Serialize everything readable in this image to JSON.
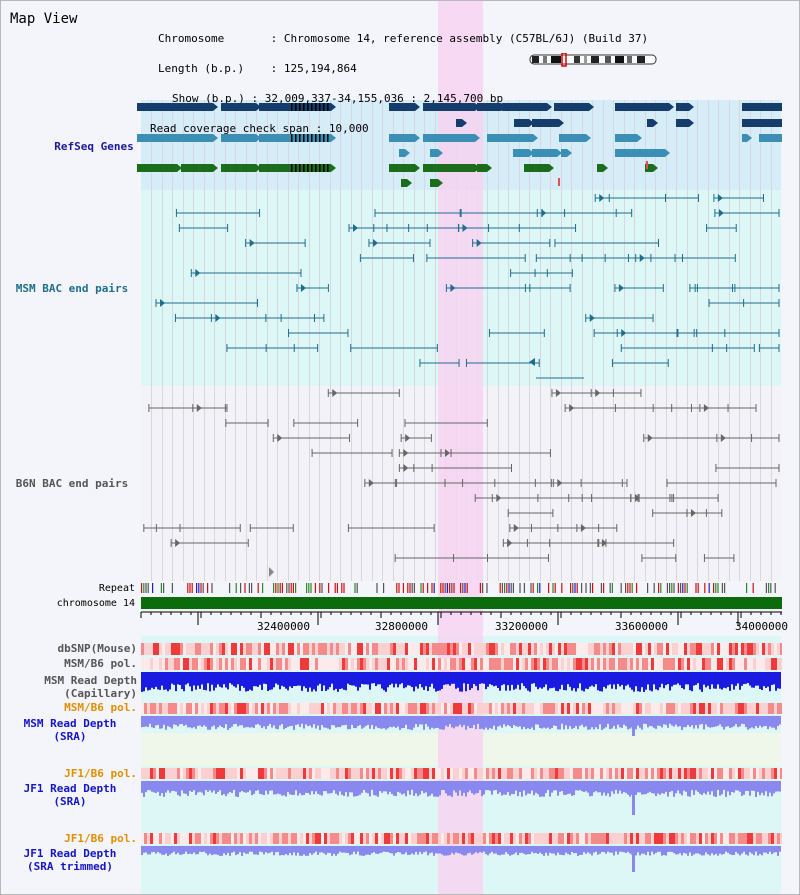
{
  "app": {
    "title": "Map View"
  },
  "header": {
    "rows": [
      {
        "label": "Chromosome",
        "value": "Chromosome 14, reference assembly (C57BL/6J) (Build 37)"
      },
      {
        "label": "Length (b.p.)",
        "value": "125,194,864"
      },
      {
        "label": "Show (b.p.)",
        "value": "32,009,337-34,155,036 : 2,145,700 bp"
      },
      {
        "label": "Read coverage check span",
        "value": "10,000"
      }
    ]
  },
  "tracks": {
    "refseq": {
      "label": "RefSeq Genes",
      "color": "#1b1b9a"
    },
    "msm_bac": {
      "label": "MSM BAC end pairs",
      "color": "#1f6f8b"
    },
    "b6n_bac": {
      "label": "B6N BAC end pairs",
      "color": "#555555"
    },
    "repeat": {
      "label": "Repeat"
    },
    "chromosome": {
      "label": "chromosome 14"
    },
    "dbsnp": {
      "label": "dbSNP(Mouse)"
    },
    "msm_pol1": {
      "label": "MSM/B6 pol."
    },
    "msm_depth_cap": {
      "label1": "MSM Read Depth",
      "label2": "(Capillary)"
    },
    "msm_pol2": {
      "label": "MSM/B6 pol.",
      "color": "#e09000"
    },
    "msm_depth_sra": {
      "label1": "MSM Read Depth",
      "label2": "(SRA)",
      "color": "#1515c8"
    },
    "jf1_pol1": {
      "label": "JF1/B6 pol.",
      "color": "#e09000"
    },
    "jf1_depth_sra": {
      "label1": "JF1 Read Depth",
      "label2": "(SRA)",
      "color": "#1515c8"
    },
    "jf1_pol2": {
      "label": "JF1/B6 pol.",
      "color": "#e09000"
    },
    "jf1_depth_trim": {
      "label1": "JF1 Read Depth",
      "label2": "(SRA trimmed)",
      "color": "#1515c8"
    }
  },
  "axis": {
    "ticks": [
      "32400000",
      "32800000",
      "33200000",
      "33600000",
      "34000000"
    ]
  },
  "colors": {
    "highlight": "#f7d3f1",
    "refseq_bg": "#d6ecf7",
    "msm_bg": "#ddf7f7",
    "gene_navy": "#143d6b",
    "gene_teal": "#3b8fb5",
    "gene_green": "#1b6d1b",
    "bac_msm": "#1e6d8d",
    "bac_b6n": "#666666",
    "chrom_bar": "#0c6b0c",
    "depth_dark": "#1a1ae0",
    "depth_light": "#8888ee"
  }
}
